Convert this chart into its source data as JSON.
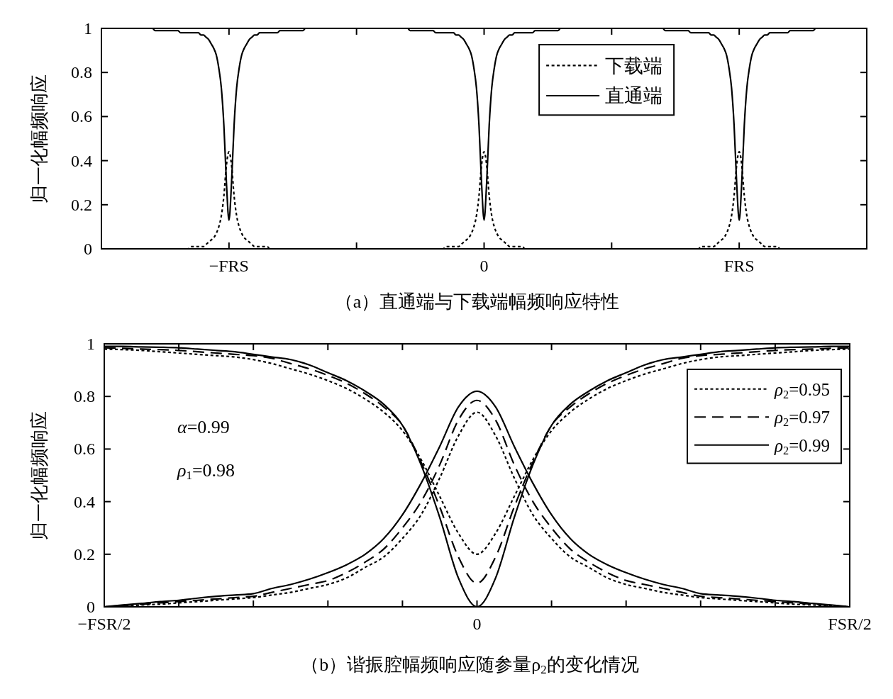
{
  "chart_data": [
    {
      "type": "line",
      "title": "（a）直通端与下载端幅频响应特性",
      "ylabel": "归一化幅频响应",
      "categories": [
        null,
        null,
        null,
        null,
        null,
        null,
        null,
        null,
        null,
        null,
        null,
        null,
        null,
        null,
        null,
        null,
        null,
        null,
        null,
        null,
        null,
        null,
        null,
        null,
        null,
        null,
        null,
        null,
        null,
        null,
        null,
        null,
        null,
        null,
        null,
        null,
        null,
        null,
        null,
        null,
        null,
        null,
        null,
        null,
        null,
        null,
        null,
        null,
        null,
        null,
        "−FRS",
        null,
        null,
        null,
        null,
        null,
        null,
        null,
        null,
        null,
        null,
        null,
        null,
        null,
        null,
        null,
        null,
        null,
        null,
        null,
        null,
        null,
        null,
        null,
        null,
        null,
        null,
        null,
        null,
        null,
        null,
        null,
        null,
        null,
        null,
        null,
        null,
        null,
        null,
        null,
        null,
        null,
        null,
        null,
        null,
        null,
        null,
        null,
        null,
        null,
        null,
        null,
        null,
        null,
        null,
        null,
        null,
        null,
        null,
        null,
        null,
        null,
        null,
        null,
        null,
        null,
        null,
        null,
        null,
        null,
        null,
        null,
        null,
        null,
        null,
        null,
        null,
        null,
        null,
        null,
        null,
        null,
        null,
        null,
        null,
        null,
        null,
        null,
        null,
        null,
        null,
        null,
        null,
        null,
        null,
        null,
        null,
        null,
        null,
        null,
        "0",
        null,
        null,
        null,
        null,
        null,
        null,
        null,
        null,
        null,
        null,
        null,
        null,
        null,
        null,
        null,
        null,
        null,
        null,
        null,
        null,
        null,
        null,
        null,
        null,
        null,
        null,
        null,
        null,
        null,
        null,
        null,
        null,
        null,
        null,
        null,
        null,
        null,
        null,
        null,
        null,
        null,
        null,
        null,
        null,
        null,
        null,
        null,
        null,
        null,
        null,
        null,
        null,
        null,
        null,
        null,
        null,
        null,
        null,
        null,
        null,
        null,
        null,
        null,
        null,
        null,
        null,
        null,
        null,
        null,
        null,
        null,
        null,
        null,
        null,
        null,
        null,
        null,
        null,
        null,
        null,
        null,
        null,
        null,
        null,
        null,
        null,
        null,
        null,
        null,
        null,
        null,
        null,
        null,
        null,
        null,
        null,
        null,
        null,
        null,
        "FRS",
        null,
        null,
        null,
        null,
        null,
        null,
        null,
        null,
        null,
        null,
        null,
        null,
        null,
        null,
        null,
        null,
        null,
        null,
        null,
        null,
        null,
        null,
        null,
        null,
        null,
        null,
        null,
        null,
        null,
        null,
        null,
        null,
        null,
        null,
        null,
        null,
        null,
        null,
        null,
        null,
        null,
        null,
        null,
        null,
        null,
        null,
        null,
        null,
        null,
        null
      ],
      "ylim": [
        0,
        1
      ],
      "yticks": [
        0,
        0.2,
        0.4,
        0.6,
        0.8,
        1
      ],
      "legend": "top",
      "series": [
        {
          "name": "下载端",
          "color": "#000000",
          "line_style": "dotted",
          "values": [
            0,
            0,
            0,
            0,
            0,
            0,
            0,
            0,
            0,
            0,
            0,
            0,
            0,
            0,
            0,
            0,
            0,
            0,
            0,
            0,
            0,
            0,
            0,
            0,
            0,
            0,
            0,
            0,
            0,
            0,
            0,
            0,
            0,
            0,
            0,
            0.01,
            0.01,
            0.01,
            0.01,
            0.01,
            0.01,
            0.02,
            0.03,
            0.04,
            0.05,
            0.07,
            0.1,
            0.15,
            0.24,
            0.38,
            0.44,
            0.38,
            0.24,
            0.15,
            0.1,
            0.07,
            0.05,
            0.04,
            0.03,
            0.02,
            0.01,
            0.01,
            0.01,
            0.01,
            0.01,
            0.01,
            0,
            0,
            0,
            0,
            0,
            0,
            0,
            0,
            0,
            0,
            0,
            0,
            0,
            0,
            0,
            0,
            0,
            0,
            0,
            0,
            0,
            0,
            0,
            0,
            0,
            0,
            0,
            0,
            0,
            0,
            0,
            0,
            0,
            0,
            0,
            0,
            0,
            0,
            0,
            0,
            0,
            0,
            0,
            0,
            0,
            0,
            0,
            0,
            0,
            0,
            0,
            0,
            0,
            0,
            0,
            0,
            0,
            0,
            0,
            0,
            0,
            0,
            0,
            0,
            0,
            0,
            0,
            0,
            0,
            0.01,
            0.01,
            0.01,
            0.01,
            0.01,
            0.01,
            0.02,
            0.03,
            0.04,
            0.05,
            0.07,
            0.1,
            0.15,
            0.24,
            0.38,
            0.44,
            0.38,
            0.24,
            0.15,
            0.1,
            0.07,
            0.05,
            0.04,
            0.03,
            0.02,
            0.01,
            0.01,
            0.01,
            0.01,
            0.01,
            0.01,
            0,
            0,
            0,
            0,
            0,
            0,
            0,
            0,
            0,
            0,
            0,
            0,
            0,
            0,
            0,
            0,
            0,
            0,
            0,
            0,
            0,
            0,
            0,
            0,
            0,
            0,
            0,
            0,
            0,
            0,
            0,
            0,
            0,
            0,
            0,
            0,
            0,
            0,
            0,
            0,
            0,
            0,
            0,
            0,
            0,
            0,
            0,
            0,
            0,
            0,
            0,
            0,
            0,
            0,
            0,
            0,
            0,
            0,
            0,
            0,
            0,
            0,
            0,
            0,
            0,
            0,
            0,
            0,
            0,
            0.01,
            0.01,
            0.01,
            0.01,
            0.01,
            0.01,
            0.02,
            0.03,
            0.04,
            0.05,
            0.07,
            0.1,
            0.15,
            0.24,
            0.38,
            0.44,
            0.38,
            0.24,
            0.15,
            0.1,
            0.07,
            0.05,
            0.04,
            0.03,
            0.02,
            0.01,
            0.01,
            0.01,
            0.01,
            0.01,
            0.01,
            0,
            0,
            0,
            0,
            0,
            0,
            0,
            0,
            0,
            0,
            0,
            0,
            0,
            0,
            0,
            0,
            0,
            0,
            0,
            0,
            0,
            0,
            0,
            0,
            0,
            0,
            0,
            0,
            0,
            0,
            0,
            0,
            0,
            0,
            0
          ]
        },
        {
          "name": "直通端",
          "color": "#000000",
          "line_style": "solid",
          "values": [
            1,
            1,
            1,
            1,
            1,
            1,
            1,
            1,
            1,
            1,
            1,
            1,
            1,
            1,
            1,
            1,
            1,
            1,
            1,
            1,
            1,
            0.99,
            0.99,
            0.99,
            0.99,
            0.99,
            0.99,
            0.99,
            0.99,
            0.99,
            0.99,
            0.98,
            0.98,
            0.98,
            0.98,
            0.98,
            0.98,
            0.98,
            0.98,
            0.97,
            0.97,
            0.96,
            0.95,
            0.93,
            0.91,
            0.88,
            0.82,
            0.73,
            0.56,
            0.3,
            0.13,
            0.3,
            0.56,
            0.73,
            0.82,
            0.88,
            0.91,
            0.93,
            0.95,
            0.96,
            0.97,
            0.97,
            0.98,
            0.98,
            0.98,
            0.98,
            0.98,
            0.98,
            0.98,
            0.98,
            0.99,
            0.99,
            0.99,
            0.99,
            0.99,
            0.99,
            0.99,
            0.99,
            0.99,
            0.99,
            1,
            1,
            1,
            1,
            1,
            1,
            1,
            1,
            1,
            1,
            1,
            1,
            1,
            1,
            1,
            1,
            1,
            1,
            1,
            1,
            1,
            1,
            1,
            1,
            1,
            1,
            1,
            1,
            1,
            1,
            1,
            1,
            1,
            1,
            1,
            1,
            1,
            1,
            1,
            1,
            1,
            0.99,
            0.99,
            0.99,
            0.99,
            0.99,
            0.99,
            0.99,
            0.99,
            0.99,
            0.99,
            0.98,
            0.98,
            0.98,
            0.98,
            0.98,
            0.98,
            0.98,
            0.98,
            0.97,
            0.97,
            0.96,
            0.95,
            0.93,
            0.91,
            0.88,
            0.82,
            0.73,
            0.56,
            0.3,
            0.13,
            0.3,
            0.56,
            0.73,
            0.82,
            0.88,
            0.91,
            0.93,
            0.95,
            0.96,
            0.97,
            0.97,
            0.98,
            0.98,
            0.98,
            0.98,
            0.98,
            0.98,
            0.98,
            0.98,
            0.99,
            0.99,
            0.99,
            0.99,
            0.99,
            0.99,
            0.99,
            0.99,
            0.99,
            0.99,
            1,
            1,
            1,
            1,
            1,
            1,
            1,
            1,
            1,
            1,
            1,
            1,
            1,
            1,
            1,
            1,
            1,
            1,
            1,
            1,
            1,
            1,
            1,
            1,
            1,
            1,
            1,
            1,
            1,
            1,
            1,
            1,
            1,
            1,
            1,
            1,
            1,
            1,
            1,
            1,
            1,
            0.99,
            0.99,
            0.99,
            0.99,
            0.99,
            0.99,
            0.99,
            0.99,
            0.99,
            0.99,
            0.98,
            0.98,
            0.98,
            0.98,
            0.98,
            0.98,
            0.98,
            0.98,
            0.97,
            0.97,
            0.96,
            0.95,
            0.93,
            0.91,
            0.88,
            0.82,
            0.73,
            0.56,
            0.3,
            0.13,
            0.3,
            0.56,
            0.73,
            0.82,
            0.88,
            0.91,
            0.93,
            0.95,
            0.96,
            0.97,
            0.97,
            0.98,
            0.98,
            0.98,
            0.98,
            0.98,
            0.98,
            0.98,
            0.98,
            0.99,
            0.99,
            0.99,
            0.99,
            0.99,
            0.99,
            0.99,
            0.99,
            0.99,
            0.99,
            1,
            1,
            1,
            1,
            1,
            1,
            1,
            1,
            1,
            1,
            1,
            1,
            1,
            1,
            1,
            1,
            1,
            1,
            1,
            1,
            1
          ]
        }
      ]
    },
    {
      "type": "line",
      "title": "（b）谐振腔幅频响应随参量ρ$_{2}$的变化情况",
      "ylabel": "归一化幅频响应",
      "categories": [
        "−FSR/2",
        null,
        null,
        null,
        null,
        null,
        null,
        null,
        null,
        null,
        null,
        null,
        null,
        null,
        null,
        null,
        null,
        null,
        null,
        null,
        "0",
        null,
        null,
        null,
        null,
        null,
        null,
        null,
        null,
        null,
        null,
        null,
        null,
        null,
        null,
        null,
        null,
        null,
        null,
        null,
        "FSR/2"
      ],
      "ylim": [
        0,
        1
      ],
      "yticks": [
        0,
        0.2,
        0.4,
        0.6,
        0.8,
        1
      ],
      "legend": "top right",
      "annotations": [
        "*α*=0.99",
        "*ρ*$_{1}$=0.98"
      ],
      "series": [
        {
          "name": "*ρ*$_{2}$=0.95",
          "color": "#000000",
          "line_style": "dotted",
          "values": [
            0.98,
            0.978,
            0.975,
            0.97,
            0.965,
            0.96,
            0.955,
            0.95,
            0.94,
            0.925,
            0.905,
            0.885,
            0.86,
            0.83,
            0.79,
            0.74,
            0.67,
            0.56,
            0.42,
            0.28,
            0.2,
            0.28,
            0.42,
            0.56,
            0.67,
            0.74,
            0.79,
            0.83,
            0.86,
            0.885,
            0.905,
            0.925,
            0.94,
            0.95,
            0.955,
            0.96,
            0.965,
            0.97,
            0.975,
            0.978,
            0.98
          ]
        },
        {
          "name": "*ρ*$_{2}$=0.97",
          "color": "#000000",
          "line_style": "dashed",
          "values": [
            0.985,
            0.983,
            0.98,
            0.978,
            0.975,
            0.97,
            0.965,
            0.96,
            0.955,
            0.945,
            0.925,
            0.905,
            0.88,
            0.85,
            0.81,
            0.76,
            0.69,
            0.55,
            0.38,
            0.19,
            0.09,
            0.19,
            0.38,
            0.55,
            0.69,
            0.76,
            0.81,
            0.85,
            0.88,
            0.905,
            0.925,
            0.945,
            0.955,
            0.96,
            0.965,
            0.97,
            0.975,
            0.978,
            0.98,
            0.983,
            0.985
          ]
        },
        {
          "name": "*ρ*$_{2}$=0.99",
          "color": "#000000",
          "line_style": "solid",
          "values": [
            0.99,
            0.99,
            0.988,
            0.987,
            0.985,
            0.98,
            0.975,
            0.97,
            0.96,
            0.95,
            0.94,
            0.92,
            0.89,
            0.86,
            0.82,
            0.77,
            0.69,
            0.54,
            0.34,
            0.11,
            0,
            0.11,
            0.34,
            0.54,
            0.69,
            0.77,
            0.82,
            0.86,
            0.89,
            0.92,
            0.94,
            0.95,
            0.96,
            0.97,
            0.975,
            0.98,
            0.985,
            0.987,
            0.988,
            0.99,
            0.99
          ]
        },
        {
          "color": "#000000",
          "line_style": "dotted",
          "values": [
            0,
            0.003,
            0.007,
            0.01,
            0.015,
            0.02,
            0.025,
            0.03,
            0.035,
            0.045,
            0.055,
            0.07,
            0.085,
            0.11,
            0.15,
            0.19,
            0.26,
            0.35,
            0.49,
            0.65,
            0.74,
            0.65,
            0.49,
            0.35,
            0.26,
            0.19,
            0.15,
            0.11,
            0.085,
            0.07,
            0.055,
            0.045,
            0.035,
            0.03,
            0.025,
            0.02,
            0.015,
            0.01,
            0.007,
            0.003,
            0
          ]
        },
        {
          "color": "#000000",
          "line_style": "dashed",
          "values": [
            0,
            0.005,
            0.01,
            0.015,
            0.02,
            0.025,
            0.03,
            0.035,
            0.04,
            0.055,
            0.07,
            0.085,
            0.1,
            0.13,
            0.17,
            0.22,
            0.3,
            0.4,
            0.54,
            0.71,
            0.785,
            0.71,
            0.54,
            0.4,
            0.3,
            0.22,
            0.17,
            0.13,
            0.1,
            0.085,
            0.07,
            0.055,
            0.04,
            0.035,
            0.03,
            0.025,
            0.02,
            0.015,
            0.01,
            0.005,
            0
          ]
        },
        {
          "color": "#000000",
          "line_style": "solid",
          "values": [
            0,
            0.007,
            0.013,
            0.02,
            0.025,
            0.033,
            0.04,
            0.045,
            0.05,
            0.07,
            0.085,
            0.105,
            0.13,
            0.16,
            0.2,
            0.26,
            0.35,
            0.47,
            0.61,
            0.76,
            0.82,
            0.76,
            0.61,
            0.47,
            0.35,
            0.26,
            0.2,
            0.16,
            0.13,
            0.105,
            0.085,
            0.07,
            0.05,
            0.045,
            0.04,
            0.033,
            0.025,
            0.02,
            0.013,
            0.007,
            0
          ]
        }
      ]
    }
  ]
}
